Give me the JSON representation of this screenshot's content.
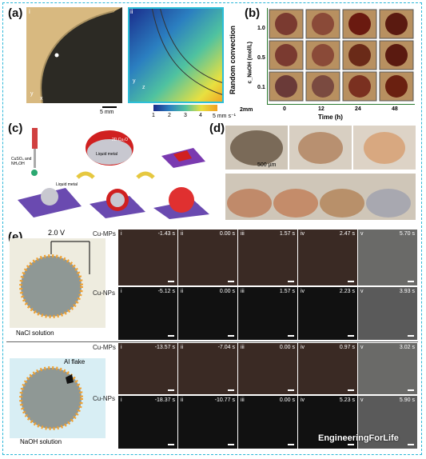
{
  "panels": {
    "a": {
      "label": "(a)",
      "sub_i": "i",
      "sub_ii": "ii",
      "scale_left": "5 mm",
      "cbar_ticks": [
        "1",
        "2",
        "3",
        "4",
        "5 mm s⁻¹"
      ],
      "axis_y": "y",
      "axis_x": "x",
      "axis_z": "z"
    },
    "b": {
      "label": "(b)",
      "side_label": "Random convection",
      "ylabel": "c_NaOH (mol/L)",
      "rows": [
        "1.0",
        "0.5",
        "0.1"
      ],
      "cols": [
        "0",
        "12",
        "24",
        "48"
      ],
      "xlabel": "Time (h)",
      "scale": "2mm"
    },
    "c": {
      "label": "(c)",
      "reagent": "CuSO₄ and NH₄OH",
      "liquid_metal": "Liquid metal",
      "liquid_metal2": "Liquid metal",
      "coating": "2D Cu₂O"
    },
    "d": {
      "label": "(d)",
      "scale": "500 µm"
    },
    "e": {
      "label": "(e)",
      "voltage": "2.0 V",
      "solution_top": "NaCl solution",
      "solution_bottom": "NaOH solution",
      "al_flake": "Al flake",
      "rows": [
        {
          "name": "Cu-MPs",
          "times": [
            "-1.43 s",
            "0.00 s",
            "1.57 s",
            "2.47 s",
            "5.70 s"
          ]
        },
        {
          "name": "Cu-NPs",
          "times": [
            "-5.12 s",
            "0.00 s",
            "1.57 s",
            "2.23 s",
            "3.93 s"
          ]
        },
        {
          "name": "Cu-MPs",
          "times": [
            "-13.57 s",
            "-7.04 s",
            "0.00 s",
            "0.97 s",
            "3.02 s"
          ]
        },
        {
          "name": "Cu-NPs",
          "times": [
            "-18.37 s",
            "-10.77 s",
            "0.00 s",
            "5.23 s",
            "5.90 s"
          ]
        }
      ],
      "roman": [
        "i",
        "ii",
        "iii",
        "iv",
        "v"
      ]
    }
  },
  "watermark": "EngineeringForLife",
  "colors": {
    "frame": "#29b6d8",
    "copper": "#b5532e",
    "droplet": "#8a2a1e"
  }
}
